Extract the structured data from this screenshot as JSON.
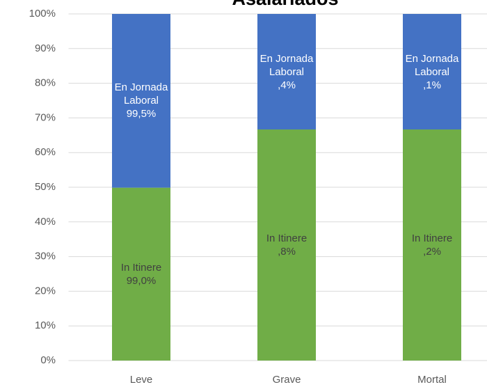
{
  "chart_data": {
    "type": "bar",
    "stacking": "percent",
    "title": "Asalariados",
    "categories": [
      "Leve",
      "Grave",
      "Mortal"
    ],
    "series": [
      {
        "name": "In Itinere",
        "color": "#70ad47",
        "values": [
          99.0,
          0.8,
          0.2
        ],
        "value_labels": [
          "99,0%",
          ",8%",
          ",2%"
        ]
      },
      {
        "name": "En Jornada Laboral",
        "color": "#4472c4",
        "values": [
          99.5,
          0.4,
          0.1
        ],
        "value_labels": [
          "99,5%",
          ",4%",
          ",1%"
        ]
      }
    ],
    "ylim": [
      0,
      100
    ],
    "yticks": [
      {
        "value": 0,
        "label": "0%"
      },
      {
        "value": 10,
        "label": "10%"
      },
      {
        "value": 20,
        "label": "20%"
      },
      {
        "value": 30,
        "label": "30%"
      },
      {
        "value": 40,
        "label": "40%"
      },
      {
        "value": 50,
        "label": "50%"
      },
      {
        "value": 60,
        "label": "60%"
      },
      {
        "value": 70,
        "label": "70%"
      },
      {
        "value": 80,
        "label": "80%"
      },
      {
        "value": 90,
        "label": "90%"
      },
      {
        "value": 100,
        "label": "100%"
      }
    ],
    "grid": true
  }
}
